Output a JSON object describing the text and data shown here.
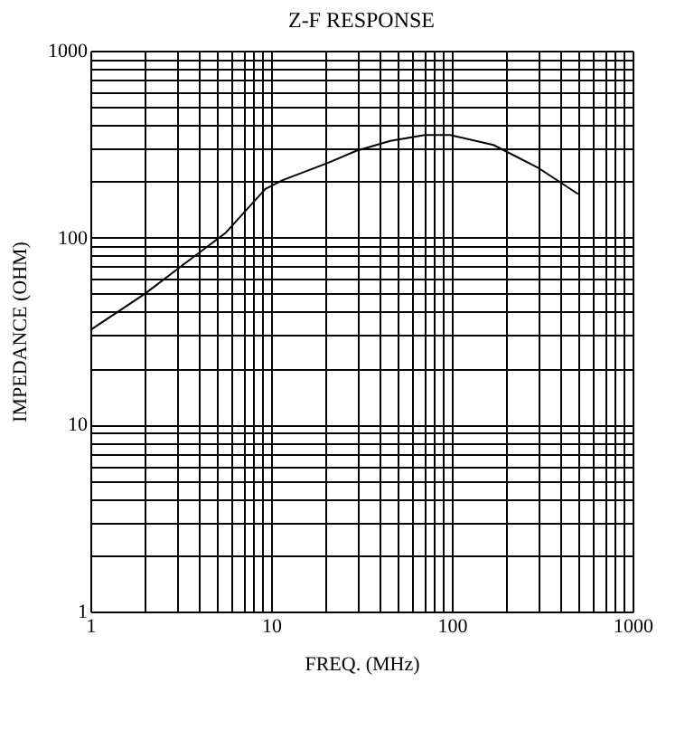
{
  "chart_data": {
    "type": "line",
    "title": "Z-F RESPONSE",
    "xlabel": "FREQ. (MHz)",
    "ylabel": "IMPEDANCE (OHM)",
    "log": "xy",
    "grid": true,
    "marker": "none",
    "line_style": "solid",
    "x": [
      1,
      2,
      3.1,
      5.6,
      9.3,
      11.6,
      20.6,
      29.6,
      45.7,
      71,
      98,
      170,
      303,
      500
    ],
    "series": [
      {
        "color": "#000000",
        "values": [
          32,
          50,
          69,
          106,
          182,
          203,
          251,
          291,
          329,
          354,
          354,
          313,
          235,
          171
        ]
      }
    ],
    "xlim": [
      1,
      1000
    ],
    "ylim": [
      1,
      1000
    ],
    "xticks": [
      1,
      {
        "value": 2,
        "label": null
      },
      {
        "value": 3,
        "label": null
      },
      {
        "value": 4,
        "label": null
      },
      {
        "value": 5,
        "label": null
      },
      {
        "value": 6,
        "label": null
      },
      {
        "value": 7,
        "label": null
      },
      {
        "value": 8,
        "label": null
      },
      {
        "value": 9,
        "label": null
      },
      10,
      {
        "value": 20,
        "label": null
      },
      {
        "value": 30,
        "label": null
      },
      {
        "value": 40,
        "label": null
      },
      {
        "value": 50,
        "label": null
      },
      {
        "value": 60,
        "label": null
      },
      {
        "value": 70,
        "label": null
      },
      {
        "value": 80,
        "label": null
      },
      {
        "value": 90,
        "label": null
      },
      100,
      {
        "value": 200,
        "label": null
      },
      {
        "value": 300,
        "label": null
      },
      {
        "value": 400,
        "label": null
      },
      {
        "value": 500,
        "label": null
      },
      {
        "value": 600,
        "label": null
      },
      {
        "value": 700,
        "label": null
      },
      {
        "value": 800,
        "label": null
      },
      {
        "value": 900,
        "label": null
      },
      1000
    ],
    "yticks": [
      1,
      {
        "value": 2,
        "label": null
      },
      {
        "value": 3,
        "label": null
      },
      {
        "value": 4,
        "label": null
      },
      {
        "value": 5,
        "label": null
      },
      {
        "value": 6,
        "label": null
      },
      {
        "value": 7,
        "label": null
      },
      {
        "value": 8,
        "label": null
      },
      {
        "value": 9,
        "label": null
      },
      10,
      {
        "value": 20,
        "label": null
      },
      {
        "value": 30,
        "label": null
      },
      {
        "value": 40,
        "label": null
      },
      {
        "value": 50,
        "label": null
      },
      {
        "value": 60,
        "label": null
      },
      {
        "value": 70,
        "label": null
      },
      {
        "value": 80,
        "label": null
      },
      {
        "value": 90,
        "label": null
      },
      100,
      {
        "value": 200,
        "label": null
      },
      {
        "value": 300,
        "label": null
      },
      {
        "value": 400,
        "label": null
      },
      {
        "value": 500,
        "label": null
      },
      {
        "value": 600,
        "label": null
      },
      {
        "value": 700,
        "label": null
      },
      {
        "value": 800,
        "label": null
      },
      {
        "value": 900,
        "label": null
      },
      1000
    ]
  }
}
